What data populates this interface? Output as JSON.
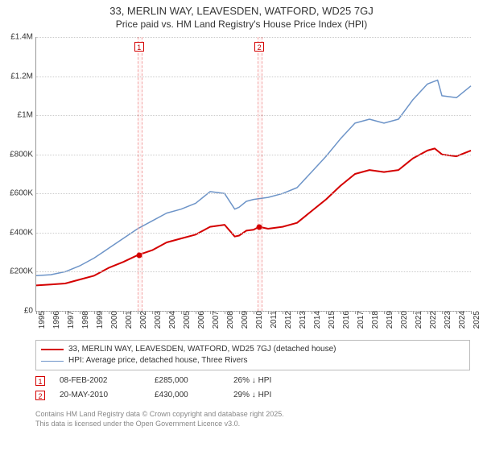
{
  "chart": {
    "type": "line",
    "title_line1": "33, MERLIN WAY, LEAVESDEN, WATFORD, WD25 7GJ",
    "title_line2": "Price paid vs. HM Land Registry's House Price Index (HPI)",
    "title_fontsize": 13,
    "subtitle_fontsize": 12,
    "background_color": "#ffffff",
    "grid_color": "#cccccc",
    "axis_color": "#999999",
    "y": {
      "min": 0,
      "max": 1400000,
      "step": 200000,
      "tick_labels": [
        "£0",
        "£200K",
        "£400K",
        "£600K",
        "£800K",
        "£1M",
        "£1.2M",
        "£1.4M"
      ],
      "label_fontsize": 10,
      "label_color": "#333333"
    },
    "x": {
      "min": 1995,
      "max": 2025,
      "years": [
        1995,
        1996,
        1997,
        1998,
        1999,
        2000,
        2001,
        2002,
        2003,
        2004,
        2005,
        2006,
        2007,
        2008,
        2009,
        2010,
        2011,
        2012,
        2013,
        2014,
        2015,
        2016,
        2017,
        2018,
        2019,
        2020,
        2021,
        2022,
        2023,
        2024,
        2025
      ],
      "label_fontsize": 10,
      "label_color": "#333333"
    },
    "series": [
      {
        "name": "price_paid",
        "label": "33, MERLIN WAY, LEAVESDEN, WATFORD, WD25 7GJ (detached house)",
        "color": "#d40000",
        "line_width": 2,
        "data": [
          [
            1995,
            130000
          ],
          [
            1996,
            135000
          ],
          [
            1997,
            140000
          ],
          [
            1998,
            160000
          ],
          [
            1999,
            180000
          ],
          [
            2000,
            220000
          ],
          [
            2001,
            250000
          ],
          [
            2002,
            285000
          ],
          [
            2003,
            310000
          ],
          [
            2004,
            350000
          ],
          [
            2005,
            370000
          ],
          [
            2006,
            390000
          ],
          [
            2007,
            430000
          ],
          [
            2008,
            440000
          ],
          [
            2008.7,
            380000
          ],
          [
            2009,
            385000
          ],
          [
            2009.5,
            410000
          ],
          [
            2010,
            415000
          ],
          [
            2010.38,
            430000
          ],
          [
            2011,
            420000
          ],
          [
            2012,
            430000
          ],
          [
            2013,
            450000
          ],
          [
            2014,
            510000
          ],
          [
            2015,
            570000
          ],
          [
            2016,
            640000
          ],
          [
            2017,
            700000
          ],
          [
            2018,
            720000
          ],
          [
            2019,
            710000
          ],
          [
            2020,
            720000
          ],
          [
            2021,
            780000
          ],
          [
            2022,
            820000
          ],
          [
            2022.5,
            830000
          ],
          [
            2023,
            800000
          ],
          [
            2024,
            790000
          ],
          [
            2025,
            820000
          ]
        ]
      },
      {
        "name": "hpi",
        "label": "HPI: Average price, detached house, Three Rivers",
        "color": "#6d94c8",
        "line_width": 1.5,
        "data": [
          [
            1995,
            180000
          ],
          [
            1996,
            185000
          ],
          [
            1997,
            200000
          ],
          [
            1998,
            230000
          ],
          [
            1999,
            270000
          ],
          [
            2000,
            320000
          ],
          [
            2001,
            370000
          ],
          [
            2002,
            420000
          ],
          [
            2003,
            460000
          ],
          [
            2004,
            500000
          ],
          [
            2005,
            520000
          ],
          [
            2006,
            550000
          ],
          [
            2007,
            610000
          ],
          [
            2008,
            600000
          ],
          [
            2008.7,
            520000
          ],
          [
            2009,
            530000
          ],
          [
            2009.5,
            560000
          ],
          [
            2010,
            570000
          ],
          [
            2011,
            580000
          ],
          [
            2012,
            600000
          ],
          [
            2013,
            630000
          ],
          [
            2014,
            710000
          ],
          [
            2015,
            790000
          ],
          [
            2016,
            880000
          ],
          [
            2017,
            960000
          ],
          [
            2018,
            980000
          ],
          [
            2019,
            960000
          ],
          [
            2020,
            980000
          ],
          [
            2021,
            1080000
          ],
          [
            2022,
            1160000
          ],
          [
            2022.7,
            1180000
          ],
          [
            2023,
            1100000
          ],
          [
            2024,
            1090000
          ],
          [
            2025,
            1150000
          ]
        ]
      }
    ],
    "reference_bands": [
      {
        "start": 2002.0,
        "end": 2002.2,
        "fill": "rgba(255,0,0,0.03)",
        "border": "#f2a0a0"
      },
      {
        "start": 2010.3,
        "end": 2010.5,
        "fill": "rgba(255,0,0,0.03)",
        "border": "#f2a0a0"
      }
    ],
    "markers": [
      {
        "id": "1",
        "x": 2002.1,
        "y_plot_top": true,
        "border_color": "#d40000",
        "text_color": "#c00000"
      },
      {
        "id": "2",
        "x": 2010.4,
        "y_plot_top": true,
        "border_color": "#d40000",
        "text_color": "#c00000"
      }
    ],
    "sale_points": [
      {
        "x": 2002.1,
        "y": 285000,
        "fill": "#d40000"
      },
      {
        "x": 2010.38,
        "y": 430000,
        "fill": "#d40000"
      }
    ]
  },
  "legend": {
    "border_color": "#bbbbbb",
    "fontsize": 10,
    "items": [
      {
        "color": "#d40000",
        "width": 2,
        "label": "33, MERLIN WAY, LEAVESDEN, WATFORD, WD25 7GJ (detached house)"
      },
      {
        "color": "#6d94c8",
        "width": 1.5,
        "label": "HPI: Average price, detached house, Three Rivers"
      }
    ]
  },
  "sales": {
    "fontsize": 10,
    "rows": [
      {
        "id": "1",
        "date": "08-FEB-2002",
        "price": "£285,000",
        "diff": "26% ↓ HPI",
        "border_color": "#d40000"
      },
      {
        "id": "2",
        "date": "20-MAY-2010",
        "price": "£430,000",
        "diff": "29% ↓ HPI",
        "border_color": "#d40000"
      }
    ]
  },
  "attribution": {
    "line1": "Contains HM Land Registry data © Crown copyright and database right 2025.",
    "line2": "This data is licensed under the Open Government Licence v3.0.",
    "color": "#888888",
    "fontsize": 9
  }
}
